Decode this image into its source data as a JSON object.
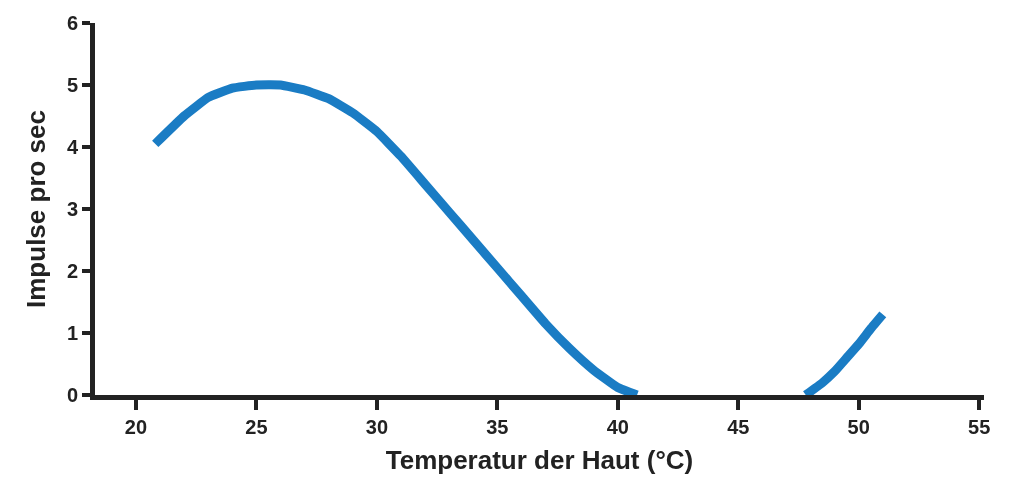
{
  "chart_data": {
    "type": "line",
    "xlabel": "Temperatur der Haut (°C)",
    "ylabel": "Impulse pro sec",
    "x": [
      20.8,
      22,
      23,
      24,
      25,
      26,
      27,
      28,
      29,
      30,
      31,
      32,
      33,
      34,
      35,
      36,
      37,
      38,
      39,
      40,
      40.8,
      44,
      47.8,
      48.5,
      49,
      49.5,
      50,
      50.5,
      51
    ],
    "series": [
      {
        "color": "#1a7cc4",
        "values": [
          4.05,
          4.5,
          4.8,
          4.95,
          5.0,
          5.0,
          4.92,
          4.78,
          4.55,
          4.25,
          3.85,
          3.4,
          2.95,
          2.5,
          2.05,
          1.6,
          1.15,
          0.75,
          0.4,
          0.12,
          0,
          null,
          0,
          0.2,
          0.38,
          0.6,
          0.82,
          1.07,
          1.3
        ]
      }
    ],
    "xlim": [
      18.3,
      55.2
    ],
    "xticks": [
      20,
      25,
      30,
      35,
      40,
      45,
      50,
      55
    ],
    "ylim": [
      0,
      6
    ],
    "yticks": [
      0,
      1,
      2,
      3,
      4,
      5,
      6
    ],
    "marker": "none",
    "line_style": "solid"
  }
}
